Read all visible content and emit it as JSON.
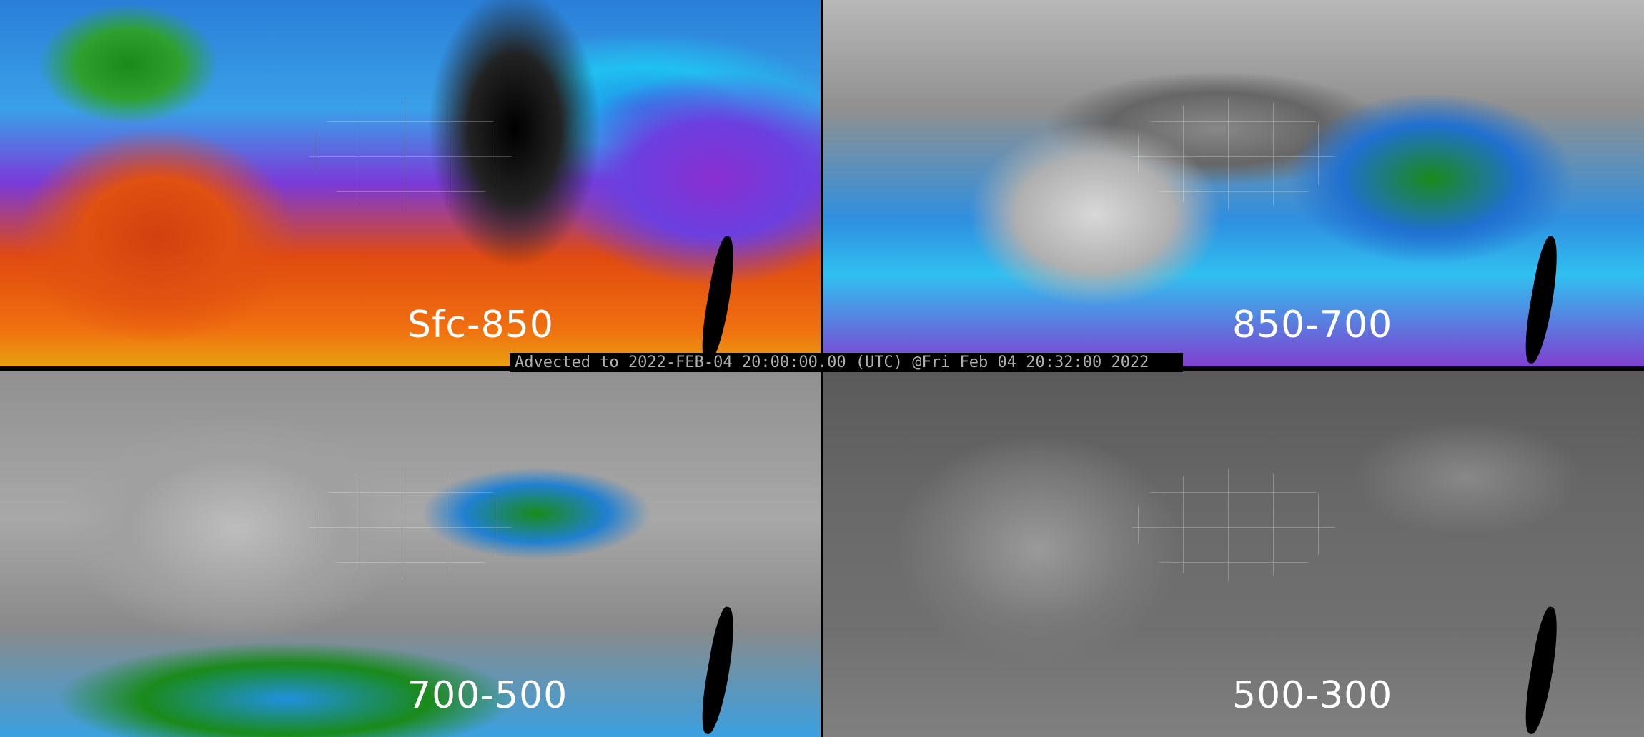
{
  "panels": [
    {
      "label": "Sfc-850",
      "layer": "surface to 850 mb"
    },
    {
      "label": "850-700",
      "layer": "850 to 700 mb"
    },
    {
      "label": "700-500",
      "layer": "700 to 500 mb"
    },
    {
      "label": "500-300",
      "layer": "500 to 300 mb"
    }
  ],
  "timestamp": "Advected to 2022-FEB-04 20:00:00.00 (UTC) @Fri Feb 04 20:32:00 2022",
  "colors": {
    "background": "#000000",
    "timestamp_text": "#b0b0b0",
    "panel_label": "#ffffff",
    "map_lines": "#ffffff"
  }
}
